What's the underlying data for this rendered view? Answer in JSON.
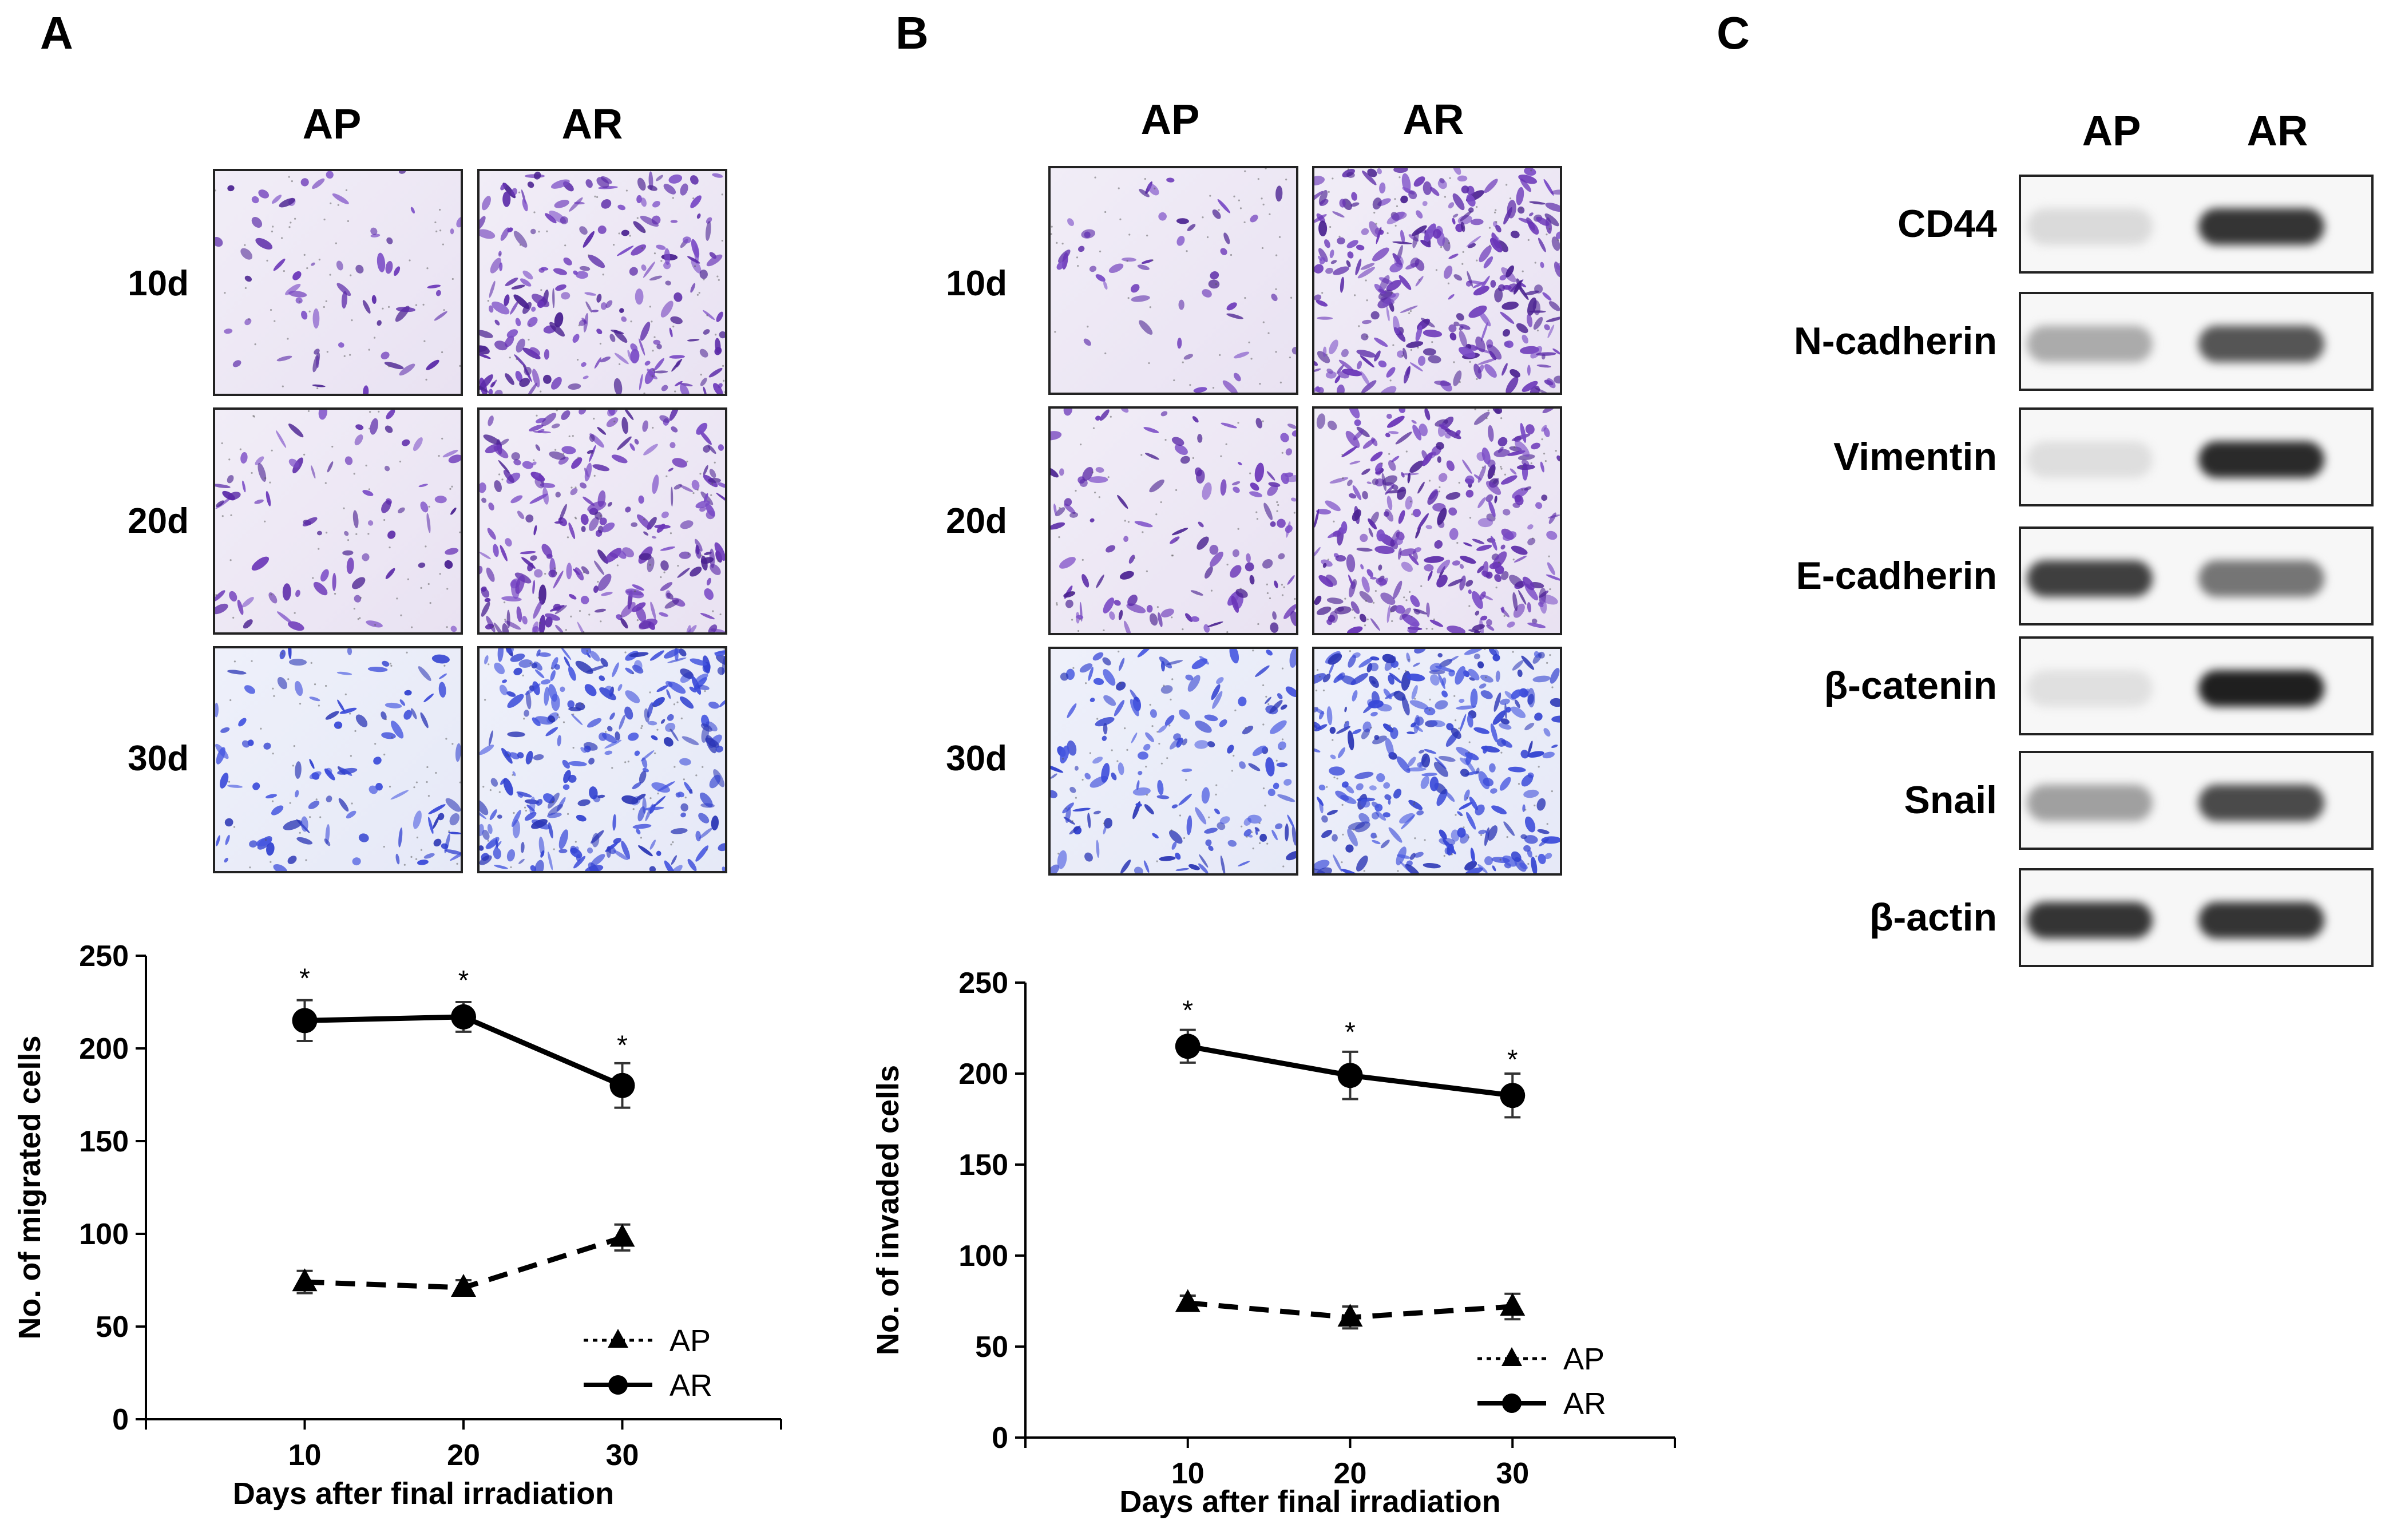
{
  "panels": {
    "A": {
      "letter": "A",
      "columns": [
        "AP",
        "AR"
      ],
      "rows": [
        "10d",
        "20d",
        "30d"
      ],
      "cell_density": [
        [
          0.15,
          0.7
        ],
        [
          0.2,
          0.8
        ],
        [
          0.3,
          0.9
        ]
      ],
      "cell_tint": [
        "violet",
        "violet",
        "blue"
      ]
    },
    "B": {
      "letter": "B",
      "columns": [
        "AP",
        "AR"
      ],
      "rows": [
        "10d",
        "20d",
        "30d"
      ],
      "cell_density": [
        [
          0.1,
          1.0
        ],
        [
          0.35,
          1.0
        ],
        [
          0.5,
          1.0
        ]
      ],
      "cell_tint": [
        "violet",
        "violet",
        "blue"
      ]
    },
    "C": {
      "letter": "C",
      "columns": [
        "AP",
        "AR"
      ],
      "proteins": [
        "CD44",
        "N-cadherin",
        "Vimentin",
        "E-cadherin",
        "β-catenin",
        "Snail",
        "β-actin"
      ],
      "band_intensity_AP": [
        0.08,
        0.3,
        0.06,
        0.8,
        0.05,
        0.35,
        0.85
      ],
      "band_intensity_AR": [
        0.85,
        0.7,
        0.9,
        0.55,
        0.95,
        0.75,
        0.85
      ]
    }
  },
  "chart_data": [
    {
      "type": "line",
      "panel": "A",
      "xlabel": "Days after final irradiation",
      "ylabel": "No. of migrated cells",
      "x": [
        10,
        20,
        30
      ],
      "xlim": [
        0,
        40
      ],
      "ylim": [
        0,
        250
      ],
      "yticks": [
        0,
        50,
        100,
        150,
        200,
        250
      ],
      "xticks": [
        10,
        20,
        30
      ],
      "legend_position": "bottom-right",
      "series": [
        {
          "name": "AP",
          "style": "dashed",
          "marker": "triangle",
          "values": [
            74,
            71,
            98
          ],
          "errors": [
            6,
            4,
            7
          ]
        },
        {
          "name": "AR",
          "style": "solid",
          "marker": "circle",
          "values": [
            215,
            217,
            180
          ],
          "errors": [
            11,
            8,
            12
          ]
        }
      ],
      "annotations": [
        {
          "text": "*",
          "x": 10,
          "y": 239
        },
        {
          "text": "*",
          "x": 20,
          "y": 238
        },
        {
          "text": "*",
          "x": 30,
          "y": 203
        }
      ]
    },
    {
      "type": "line",
      "panel": "B",
      "xlabel": "Days after final irradiation",
      "ylabel": "No. of invaded cells",
      "x": [
        10,
        20,
        30
      ],
      "xlim": [
        0,
        40
      ],
      "ylim": [
        0,
        250
      ],
      "yticks": [
        0,
        50,
        100,
        150,
        200,
        250
      ],
      "xticks": [
        10,
        20,
        30
      ],
      "legend_position": "bottom-right",
      "series": [
        {
          "name": "AP",
          "style": "dashed",
          "marker": "triangle",
          "values": [
            74,
            66,
            72
          ],
          "errors": [
            4,
            6,
            7
          ]
        },
        {
          "name": "AR",
          "style": "solid",
          "marker": "circle",
          "values": [
            215,
            199,
            188
          ],
          "errors": [
            9,
            13,
            12
          ]
        }
      ],
      "annotations": [
        {
          "text": "*",
          "x": 10,
          "y": 236
        },
        {
          "text": "*",
          "x": 20,
          "y": 224
        },
        {
          "text": "*",
          "x": 30,
          "y": 209
        }
      ]
    }
  ]
}
